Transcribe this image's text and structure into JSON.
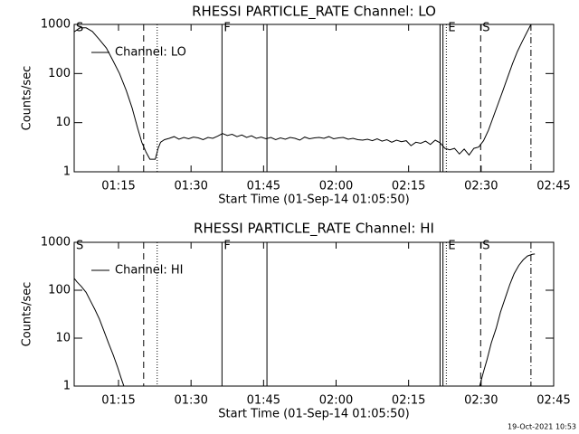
{
  "chart_data": [
    {
      "type": "line",
      "title": "RHESSI PARTICLE_RATE Channel: LO",
      "xlabel": "Start Time (01-Sep-14 01:05:50)",
      "ylabel": "Counts/sec",
      "log_y": true,
      "xlim": [
        65.83,
        165
      ],
      "ylim": [
        1,
        1000
      ],
      "yticks": [
        1,
        10,
        100,
        1000
      ],
      "xticks": [
        {
          "value": 75,
          "label": "01:15"
        },
        {
          "value": 90,
          "label": "01:30"
        },
        {
          "value": 105,
          "label": "01:45"
        },
        {
          "value": 120,
          "label": "02:00"
        },
        {
          "value": 135,
          "label": "02:15"
        },
        {
          "value": 150,
          "label": "02:30"
        },
        {
          "value": 165,
          "label": "02:45"
        }
      ],
      "annotations": [
        {
          "x": 65.83,
          "style": "solid",
          "label": "S"
        },
        {
          "x": 80.2,
          "style": "dashed"
        },
        {
          "x": 83.0,
          "style": "dotted"
        },
        {
          "x": 96.4,
          "style": "solid",
          "label": "F"
        },
        {
          "x": 105.7,
          "style": "solid"
        },
        {
          "x": 141.5,
          "style": "solid"
        },
        {
          "x": 142.1,
          "style": "solid"
        },
        {
          "x": 142.8,
          "style": "dotted",
          "label": "E"
        },
        {
          "x": 149.9,
          "style": "dashed",
          "label": "S"
        },
        {
          "x": 160.3,
          "style": "dashdot"
        }
      ],
      "series": [
        {
          "name": "Channel: LO",
          "color": "#000000",
          "x": [
            65.8,
            67.0,
            68.3,
            69.6,
            71.0,
            72.5,
            73.9,
            75.2,
            76.6,
            77.8,
            78.9,
            79.8,
            80.7,
            81.5,
            82.6,
            83.2,
            83.7,
            84.5,
            85.5,
            86.5,
            87.5,
            88.5,
            89.5,
            90.5,
            91.5,
            92.5,
            93.5,
            94.5,
            95.5,
            96.5,
            97.5,
            98.5,
            99.5,
            100.5,
            101.5,
            102.5,
            103.5,
            104.5,
            105.5,
            106.5,
            107.5,
            108.5,
            109.5,
            110.5,
            111.5,
            112.5,
            113.5,
            114.5,
            115.5,
            116.5,
            117.5,
            118.5,
            119.5,
            120.5,
            121.5,
            122.5,
            123.5,
            124.5,
            125.5,
            126.5,
            127.5,
            128.5,
            129.5,
            130.5,
            131.5,
            132.5,
            133.5,
            134.5,
            135.5,
            136.5,
            137.5,
            138.5,
            139.5,
            140.5,
            141.5,
            142.5,
            143.5,
            144.5,
            145.5,
            146.5,
            147.5,
            148.5,
            149.5,
            150.5,
            151.5,
            152.5,
            153.5,
            154.5,
            155.5,
            156.5,
            157.5,
            158.5,
            159.5,
            160.3
          ],
          "values": [
            700,
            850,
            850,
            720,
            500,
            330,
            180,
            100,
            45,
            20,
            8,
            4,
            2.5,
            1.8,
            1.8,
            3,
            4,
            4.5,
            4.8,
            5.2,
            4.6,
            5.0,
            4.7,
            5.1,
            4.9,
            4.5,
            5.0,
            4.8,
            5.3,
            6.0,
            5.5,
            5.8,
            5.2,
            5.6,
            5.0,
            5.4,
            4.8,
            5.1,
            4.7,
            5.0,
            4.5,
            4.9,
            4.6,
            5.0,
            4.8,
            4.4,
            5.1,
            4.7,
            4.9,
            5.0,
            4.8,
            5.2,
            4.7,
            4.9,
            5.0,
            4.6,
            4.8,
            4.5,
            4.4,
            4.6,
            4.3,
            4.7,
            4.2,
            4.5,
            4.0,
            4.4,
            4.1,
            4.3,
            3.4,
            4.0,
            3.8,
            4.2,
            3.6,
            4.4,
            3.9,
            3.0,
            2.8,
            3.0,
            2.3,
            2.9,
            2.2,
            3.0,
            3.2,
            4.3,
            7,
            13,
            24,
            45,
            85,
            160,
            280,
            450,
            700,
            1000
          ]
        }
      ]
    },
    {
      "type": "line",
      "title": "RHESSI PARTICLE_RATE Channel: HI",
      "xlabel": "Start Time (01-Sep-14 01:05:50)",
      "ylabel": "Counts/sec",
      "log_y": true,
      "xlim": [
        65.83,
        165
      ],
      "ylim": [
        1,
        1000
      ],
      "yticks": [
        1,
        10,
        100,
        1000
      ],
      "xticks": [
        {
          "value": 75,
          "label": "01:15"
        },
        {
          "value": 90,
          "label": "01:30"
        },
        {
          "value": 105,
          "label": "01:45"
        },
        {
          "value": 120,
          "label": "02:00"
        },
        {
          "value": 135,
          "label": "02:15"
        },
        {
          "value": 150,
          "label": "02:30"
        },
        {
          "value": 165,
          "label": "02:45"
        }
      ],
      "annotations": [
        {
          "x": 65.83,
          "style": "solid",
          "label": "S"
        },
        {
          "x": 80.2,
          "style": "dashed"
        },
        {
          "x": 83.0,
          "style": "dotted"
        },
        {
          "x": 96.4,
          "style": "solid",
          "label": "F"
        },
        {
          "x": 105.7,
          "style": "solid"
        },
        {
          "x": 141.5,
          "style": "solid"
        },
        {
          "x": 142.1,
          "style": "solid"
        },
        {
          "x": 142.8,
          "style": "dotted",
          "label": "E"
        },
        {
          "x": 149.9,
          "style": "dashed",
          "label": "S"
        },
        {
          "x": 160.3,
          "style": "dashdot"
        }
      ],
      "series": [
        {
          "name": "Channel: HI",
          "color": "#000000",
          "x": [
            65.8,
            66.4,
            67.3,
            68.3,
            69.2,
            70.1,
            71.05,
            72.0,
            72.9,
            73.9,
            74.8,
            75.5,
            76.1,
            100,
            149.7,
            150.5,
            151.2,
            152.1,
            153.1,
            154.0,
            155.0,
            155.9,
            156.8,
            157.8,
            158.7,
            159.6,
            160.6,
            161.1
          ],
          "values": [
            180,
            150,
            120,
            90,
            60,
            40,
            25,
            14,
            8,
            4.5,
            2.5,
            1.5,
            1.0,
            null,
            1.0,
            2,
            3.5,
            8,
            16,
            35,
            70,
            130,
            220,
            330,
            430,
            520,
            560,
            570
          ]
        }
      ]
    }
  ],
  "footer": "19-Oct-2021 10:53"
}
